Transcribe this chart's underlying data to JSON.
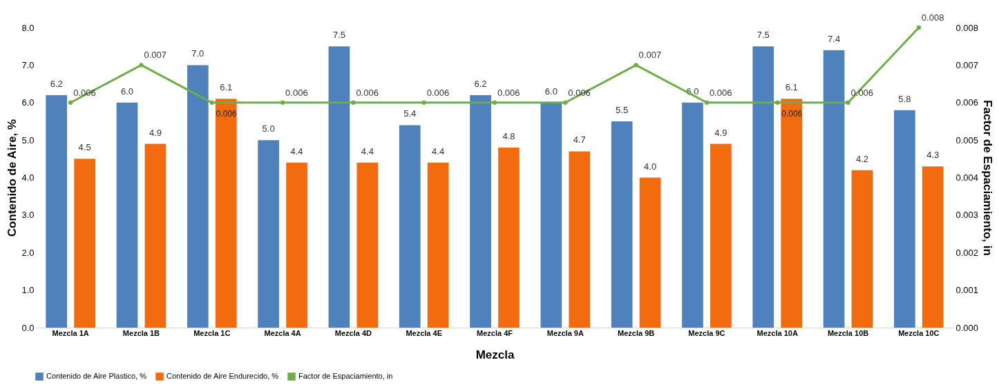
{
  "chart_data": {
    "type": "bar",
    "xlabel": "Mezcla",
    "ylabel": "Contenido de Aire, %",
    "y2label": "Factor de Espaciamiento, in",
    "categories": [
      "Mezcla 1A",
      "Mezcla 1B",
      "Mezcla 1C",
      "Mezcla 4A",
      "Mezcla 4D",
      "Mezcla 4E",
      "Mezcla 4F",
      "Mezcla 9A",
      "Mezcla 9B",
      "Mezcla 9C",
      "Mezcla 10A",
      "Mezcla 10B",
      "Mezcla 10C"
    ],
    "series": [
      {
        "name": "Contenido de Aire Plastico, %",
        "color": "#4f81bd",
        "values": [
          6.2,
          6.0,
          7.0,
          5.0,
          7.5,
          5.4,
          6.2,
          6.0,
          5.5,
          6.0,
          7.5,
          7.4,
          5.8
        ],
        "value_labels": [
          "6.2",
          "6.0",
          "7.0",
          "5.0",
          "7.5",
          "5.4",
          "6.2",
          "6.0",
          "5.5",
          "6.0",
          "7.5",
          "7.4",
          "5.8"
        ]
      },
      {
        "name": "Contenido de Aire Endurecido, %",
        "color": "#f26b0f",
        "values": [
          4.5,
          4.9,
          6.1,
          4.4,
          4.4,
          4.4,
          4.8,
          4.7,
          4.0,
          4.9,
          6.1,
          4.2,
          4.3
        ],
        "value_labels": [
          "4.5",
          "4.9",
          "6.1",
          "4.4",
          "4.4",
          "4.4",
          "4.8",
          "4.7",
          "4.0",
          "4.9",
          "6.1",
          "4.2",
          "4.3"
        ]
      },
      {
        "name": "Factor de Espaciamiento, in",
        "type": "line",
        "axis": "y2",
        "color": "#70ad47",
        "values": [
          0.006,
          0.007,
          0.006,
          0.006,
          0.006,
          0.006,
          0.006,
          0.006,
          0.007,
          0.006,
          0.006,
          0.006,
          0.008
        ],
        "value_labels": [
          "0.006",
          "0.007",
          "0.006",
          "0.006",
          "0.006",
          "0.006",
          "0.006",
          "0.006",
          "0.007",
          "0.006",
          "0.006",
          "0.006",
          "0.008"
        ]
      }
    ],
    "ylim": [
      0,
      8
    ],
    "yticks": [
      {
        "value": 0,
        "label": "0.0"
      },
      {
        "value": 1,
        "label": "1.0"
      },
      {
        "value": 2,
        "label": "2.0"
      },
      {
        "value": 3,
        "label": "3.0"
      },
      {
        "value": 4,
        "label": "4.0"
      },
      {
        "value": 5,
        "label": "5.0"
      },
      {
        "value": 6,
        "label": "6.0"
      },
      {
        "value": 7,
        "label": "7.0"
      },
      {
        "value": 8,
        "label": "8.0"
      }
    ],
    "y2lim": [
      0,
      0.008
    ],
    "y2ticks": [
      {
        "value": 0,
        "label": "0.000"
      },
      {
        "value": 0.001,
        "label": "0.001"
      },
      {
        "value": 0.002,
        "label": "0.002"
      },
      {
        "value": 0.003,
        "label": "0.003"
      },
      {
        "value": 0.004,
        "label": "0.004"
      },
      {
        "value": 0.005,
        "label": "0.005"
      },
      {
        "value": 0.006,
        "label": "0.006"
      },
      {
        "value": 0.007,
        "label": "0.007"
      },
      {
        "value": 0.008,
        "label": "0.008"
      }
    ],
    "legend": "bottom",
    "marker": "circle",
    "line_style": "solid"
  }
}
